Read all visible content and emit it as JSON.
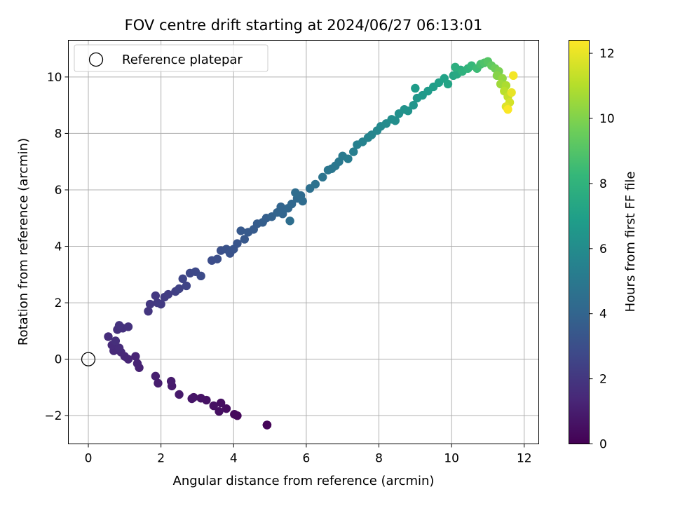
{
  "chart_data": {
    "type": "scatter",
    "title": "FOV centre drift starting at 2024/06/27 06:13:01",
    "xlabel": "Angular distance from reference (arcmin)",
    "ylabel": "Rotation from reference (arcmin)",
    "xlim": [
      -0.55,
      12.4
    ],
    "ylim": [
      -3.0,
      11.3
    ],
    "xticks": [
      0,
      2,
      4,
      6,
      8,
      10,
      12
    ],
    "yticks": [
      -2,
      0,
      2,
      4,
      6,
      8,
      10
    ],
    "xtick_labels": [
      "0",
      "2",
      "4",
      "6",
      "8",
      "10",
      "12"
    ],
    "ytick_labels": [
      "−2",
      "0",
      "2",
      "4",
      "6",
      "8",
      "10"
    ],
    "grid": true,
    "legend": {
      "placement": "top-left",
      "entries": [
        "Reference platepar"
      ]
    },
    "reference_point": {
      "x": 0,
      "y": 0,
      "marker": "open-circle",
      "color": "#000000"
    },
    "colorbar": {
      "label": "Hours from first FF file",
      "range": [
        0,
        12.4
      ],
      "ticks": [
        0,
        2,
        4,
        6,
        8,
        10,
        12
      ],
      "tick_labels": [
        "0",
        "2",
        "4",
        "6",
        "8",
        "10",
        "12"
      ],
      "colormap": "viridis",
      "colormap_stops": [
        "#440154",
        "#482878",
        "#3e4989",
        "#31688e",
        "#26828e",
        "#1f9e89",
        "#35b779",
        "#6ece58",
        "#b5de2b",
        "#fde725"
      ]
    },
    "series": [
      {
        "color_by": "hours",
        "points": [
          [
            4.92,
            -2.33,
            0.05
          ],
          [
            4.92,
            -2.33,
            0.1
          ],
          [
            4.92,
            -2.33,
            0.15
          ],
          [
            4.1,
            -2.0,
            0.25
          ],
          [
            4.02,
            -1.95,
            0.3
          ],
          [
            3.8,
            -1.75,
            0.4
          ],
          [
            3.65,
            -1.55,
            0.45
          ],
          [
            3.6,
            -1.85,
            0.5
          ],
          [
            3.45,
            -1.65,
            0.55
          ],
          [
            3.25,
            -1.45,
            0.6
          ],
          [
            3.1,
            -1.38,
            0.65
          ],
          [
            2.9,
            -1.35,
            0.7
          ],
          [
            2.85,
            -1.4,
            0.75
          ],
          [
            2.5,
            -1.25,
            0.85
          ],
          [
            2.3,
            -0.95,
            0.9
          ],
          [
            2.28,
            -0.78,
            0.95
          ],
          [
            1.92,
            -0.85,
            1.0
          ],
          [
            1.85,
            -0.6,
            1.05
          ],
          [
            1.4,
            -0.3,
            1.15
          ],
          [
            1.35,
            -0.15,
            1.2
          ],
          [
            1.3,
            0.1,
            1.25
          ],
          [
            1.1,
            0.0,
            1.3
          ],
          [
            1.0,
            0.1,
            1.35
          ],
          [
            0.9,
            0.25,
            1.4
          ],
          [
            0.7,
            0.3,
            1.45
          ],
          [
            0.65,
            0.5,
            1.5
          ],
          [
            0.85,
            0.4,
            1.55
          ],
          [
            0.55,
            0.8,
            1.6
          ],
          [
            0.75,
            0.65,
            1.65
          ],
          [
            0.8,
            1.05,
            1.7
          ],
          [
            0.95,
            1.1,
            1.75
          ],
          [
            1.1,
            1.15,
            1.8
          ],
          [
            0.85,
            1.2,
            1.85
          ],
          [
            1.65,
            1.7,
            1.95
          ],
          [
            1.7,
            1.95,
            2.0
          ],
          [
            1.85,
            2.25,
            2.05
          ],
          [
            1.9,
            2.0,
            2.1
          ],
          [
            2.0,
            1.95,
            2.15
          ],
          [
            2.1,
            2.2,
            2.2
          ],
          [
            2.2,
            2.3,
            2.25
          ],
          [
            2.4,
            2.4,
            2.35
          ],
          [
            2.5,
            2.5,
            2.45
          ],
          [
            2.7,
            2.6,
            2.55
          ],
          [
            2.6,
            2.85,
            2.6
          ],
          [
            2.8,
            3.05,
            2.7
          ],
          [
            2.95,
            3.1,
            2.75
          ],
          [
            3.1,
            2.95,
            2.85
          ],
          [
            3.4,
            3.5,
            2.95
          ],
          [
            3.55,
            3.55,
            3.0
          ],
          [
            3.65,
            3.85,
            3.05
          ],
          [
            3.8,
            3.9,
            3.15
          ],
          [
            3.9,
            3.75,
            3.2
          ],
          [
            4.0,
            3.9,
            3.25
          ],
          [
            4.1,
            4.1,
            3.3
          ],
          [
            4.3,
            4.25,
            3.4
          ],
          [
            4.2,
            4.55,
            3.45
          ],
          [
            4.4,
            4.5,
            3.5
          ],
          [
            4.55,
            4.6,
            3.55
          ],
          [
            4.65,
            4.8,
            3.6
          ],
          [
            4.8,
            4.85,
            3.7
          ],
          [
            4.9,
            5.0,
            3.75
          ],
          [
            5.05,
            5.05,
            3.85
          ],
          [
            5.2,
            5.2,
            3.95
          ],
          [
            5.3,
            5.4,
            4.0
          ],
          [
            5.35,
            5.15,
            4.05
          ],
          [
            5.5,
            5.35,
            4.1
          ],
          [
            5.6,
            5.5,
            4.15
          ],
          [
            5.75,
            5.7,
            4.25
          ],
          [
            5.85,
            5.8,
            4.3
          ],
          [
            5.9,
            5.6,
            4.35
          ],
          [
            5.7,
            5.9,
            4.4
          ],
          [
            5.55,
            4.9,
            4.45
          ],
          [
            6.1,
            6.05,
            4.55
          ],
          [
            6.25,
            6.2,
            4.65
          ],
          [
            6.45,
            6.45,
            4.75
          ],
          [
            6.6,
            6.7,
            4.85
          ],
          [
            6.7,
            6.75,
            4.9
          ],
          [
            6.8,
            6.85,
            4.95
          ],
          [
            6.9,
            7.0,
            5.0
          ],
          [
            7.0,
            7.2,
            5.1
          ],
          [
            7.15,
            7.1,
            5.2
          ],
          [
            7.3,
            7.35,
            5.3
          ],
          [
            7.4,
            7.6,
            5.4
          ],
          [
            7.55,
            7.7,
            5.5
          ],
          [
            7.7,
            7.85,
            5.6
          ],
          [
            7.8,
            7.95,
            5.65
          ],
          [
            7.95,
            8.1,
            5.75
          ],
          [
            8.05,
            8.25,
            5.85
          ],
          [
            8.2,
            8.35,
            5.95
          ],
          [
            8.35,
            8.5,
            6.05
          ],
          [
            8.45,
            8.45,
            6.1
          ],
          [
            8.55,
            8.7,
            6.2
          ],
          [
            8.7,
            8.85,
            6.3
          ],
          [
            8.8,
            8.8,
            6.35
          ],
          [
            8.95,
            9.0,
            6.45
          ],
          [
            9.05,
            9.25,
            6.55
          ],
          [
            9.2,
            9.35,
            6.65
          ],
          [
            9.35,
            9.5,
            6.75
          ],
          [
            9.0,
            9.6,
            6.8
          ],
          [
            9.5,
            9.65,
            6.9
          ],
          [
            9.65,
            9.8,
            7.0
          ],
          [
            9.8,
            9.95,
            7.1
          ],
          [
            9.9,
            9.75,
            7.2
          ],
          [
            10.05,
            10.05,
            7.3
          ],
          [
            10.15,
            10.1,
            7.45
          ],
          [
            10.25,
            10.25,
            7.6
          ],
          [
            10.1,
            10.35,
            7.75
          ],
          [
            10.3,
            10.2,
            7.9
          ],
          [
            10.45,
            10.3,
            8.05
          ],
          [
            10.55,
            10.4,
            8.25
          ],
          [
            10.7,
            10.3,
            8.45
          ],
          [
            10.8,
            10.45,
            8.65
          ],
          [
            10.9,
            10.5,
            8.9
          ],
          [
            11.0,
            10.55,
            9.1
          ],
          [
            11.1,
            10.4,
            9.35
          ],
          [
            11.2,
            10.3,
            9.6
          ],
          [
            11.3,
            10.2,
            9.85
          ],
          [
            11.25,
            10.05,
            10.1
          ],
          [
            11.4,
            9.95,
            10.35
          ],
          [
            11.35,
            9.75,
            10.6
          ],
          [
            11.5,
            9.7,
            10.85
          ],
          [
            11.45,
            9.5,
            11.1
          ],
          [
            11.55,
            9.3,
            11.35
          ],
          [
            11.6,
            9.1,
            11.6
          ],
          [
            11.5,
            8.95,
            11.8
          ],
          [
            11.65,
            9.45,
            12.0
          ],
          [
            11.7,
            10.05,
            12.2
          ],
          [
            11.55,
            8.85,
            12.35
          ]
        ]
      }
    ]
  }
}
